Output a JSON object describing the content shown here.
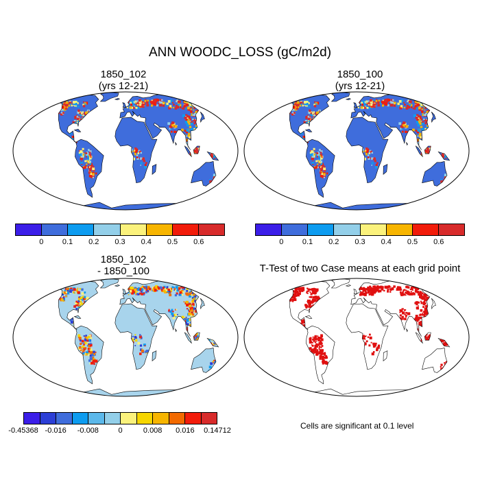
{
  "title": "ANN WOODC_LOSS (gC/m2d)",
  "panels": [
    {
      "title_line1": "1850_102",
      "title_line2": "(yrs 12-21)"
    },
    {
      "title_line1": "1850_100",
      "title_line2": "(yrs 12-21)"
    },
    {
      "title_line1": "1850_102",
      "title_line2": "- 1850_100"
    },
    {
      "title_line1": "T-Test of two Case means at each grid point",
      "title_line2": ""
    }
  ],
  "colorbar_top": {
    "colors": [
      "#3b1ee8",
      "#3f6ddc",
      "#0d9cf0",
      "#93cfe9",
      "#fbf27c",
      "#f7b500",
      "#f21c0a",
      "#d82b2b"
    ],
    "ticks": [
      "0",
      "0.1",
      "0.2",
      "0.3",
      "0.4",
      "0.5",
      "0.6"
    ]
  },
  "colorbar_diff": {
    "colors": [
      "#3b1ee8",
      "#2c3fd6",
      "#3f6ddc",
      "#0d9cf0",
      "#5cb8ea",
      "#93cfe9",
      "#fbf27c",
      "#f6d600",
      "#f7b500",
      "#f26a00",
      "#f21c0a",
      "#d82b2b"
    ],
    "ticks": [
      "-0.45368",
      "-0.016",
      "-0.008",
      "0",
      "0.008",
      "0.016",
      "0.14712"
    ]
  },
  "ttest_note": "Cells are significant at 0.1 level",
  "colors": {
    "land_base": "#3f6ddc",
    "diff_base": "#a8d4ec",
    "significant": "#e01010"
  }
}
